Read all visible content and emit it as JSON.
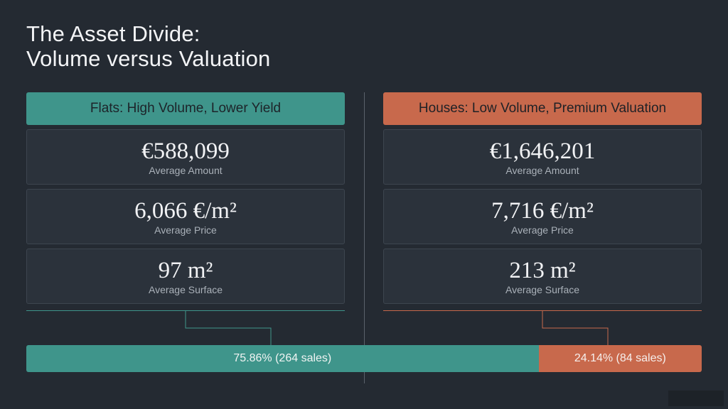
{
  "title": {
    "line1": "The Asset Divide:",
    "line2": "Volume versus Valuation"
  },
  "flats": {
    "header": "Flats: High Volume, Lower Yield",
    "color": "#3f958b",
    "metrics": [
      {
        "value": "€588,099",
        "label": "Average Amount"
      },
      {
        "value": "6,066 €/m²",
        "label": "Average Price"
      },
      {
        "value": "97 m²",
        "label": "Average Surface"
      }
    ],
    "share_label": "75.86% (264 sales)",
    "share_percent": 75.86
  },
  "houses": {
    "header": "Houses: Low Volume, Premium Valuation",
    "color": "#c8694c",
    "metrics": [
      {
        "value": "€1,646,201",
        "label": "Average Amount"
      },
      {
        "value": "7,716 €/m²",
        "label": "Average Price"
      },
      {
        "value": "213 m²",
        "label": "Average Surface"
      }
    ],
    "share_label": "24.14% (84 sales)",
    "share_percent": 24.14
  }
}
